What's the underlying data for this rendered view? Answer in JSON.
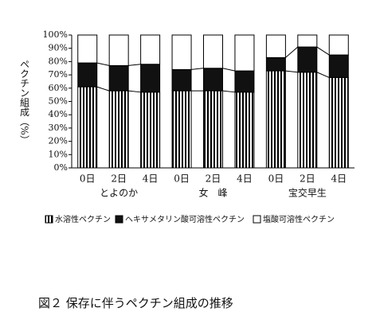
{
  "chart_data": {
    "type": "stacked-bar",
    "y_label": "ペクチン組成（%）",
    "categories": [
      "0日",
      "2日",
      "4日",
      "0日",
      "2日",
      "4日",
      "0日",
      "2日",
      "4日"
    ],
    "group_labels": [
      "とよのか",
      "女　峰",
      "宝交早生"
    ],
    "series": [
      {
        "name": "水溶性ペクチン",
        "color": "#000000",
        "pattern": "vertical-stripes",
        "values": [
          61,
          58,
          57,
          58,
          58,
          57,
          73,
          72,
          68
        ]
      },
      {
        "name": "ヘキサメタリン酸可溶性ペクチン",
        "color": "#111111",
        "values": [
          18,
          19,
          21,
          16,
          17,
          16,
          10,
          19,
          17
        ]
      },
      {
        "name": "塩酸可溶性ペクチン",
        "color": "#ffffff",
        "values": [
          21,
          23,
          22,
          26,
          25,
          27,
          17,
          9,
          15
        ]
      }
    ],
    "ylim": [
      0,
      100
    ],
    "yticks": [
      {
        "value": 0,
        "label": "0%"
      },
      {
        "value": 10,
        "label": "10%"
      },
      {
        "value": 20,
        "label": "20%"
      },
      {
        "value": 30,
        "label": "30%"
      },
      {
        "value": 40,
        "label": "40%"
      },
      {
        "value": 50,
        "label": "50%"
      },
      {
        "value": 60,
        "label": "60%"
      },
      {
        "value": 70,
        "label": "70%"
      },
      {
        "value": 80,
        "label": "80%"
      },
      {
        "value": 90,
        "label": "90%"
      },
      {
        "value": 100,
        "label": "100%"
      }
    ],
    "connect_segments": true,
    "caption": "図２ 保存に伴うペクチン組成の推移"
  }
}
